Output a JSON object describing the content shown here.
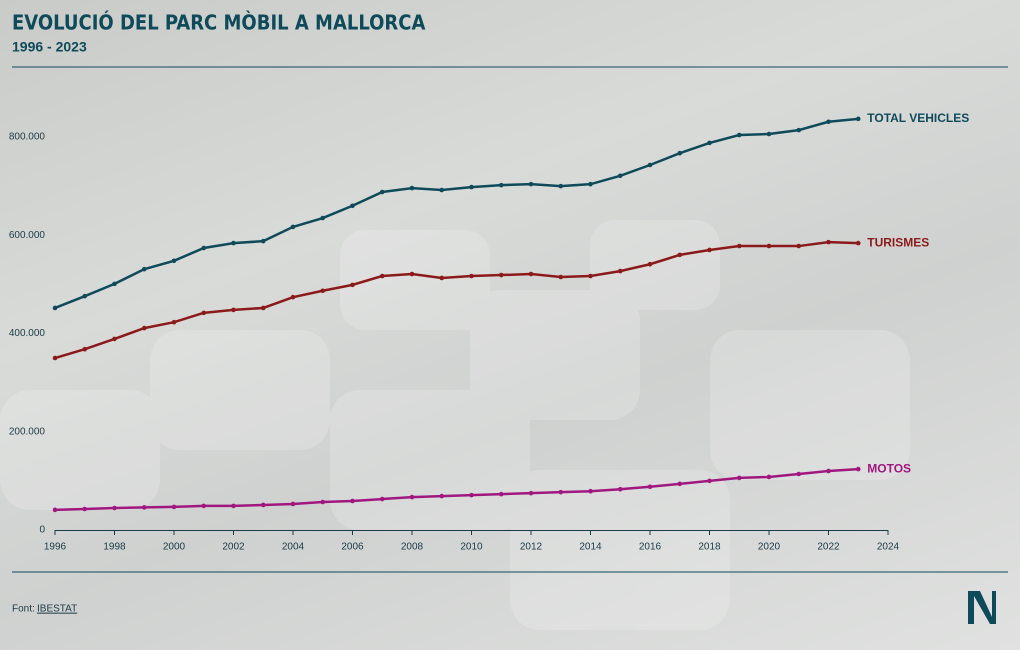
{
  "chart_data": {
    "type": "line",
    "title": "EVOLUCIÓ DEL PARC MÒBIL A MALLORCA",
    "subtitle": "1996 - 2023",
    "x": [
      1996,
      1997,
      1998,
      1999,
      2000,
      2001,
      2002,
      2003,
      2004,
      2005,
      2006,
      2007,
      2008,
      2009,
      2010,
      2011,
      2012,
      2013,
      2014,
      2015,
      2016,
      2017,
      2018,
      2019,
      2020,
      2021,
      2022,
      2023
    ],
    "series": [
      {
        "name": "TOTAL VEHICLES",
        "color": "#0f4a5a",
        "values": [
          452000,
          476000,
          501000,
          531000,
          548000,
          574000,
          584000,
          588000,
          617000,
          635000,
          660000,
          688000,
          696000,
          692000,
          698000,
          702000,
          704000,
          700000,
          704000,
          721000,
          743000,
          767000,
          788000,
          804000,
          806000,
          814000,
          831000,
          837000
        ]
      },
      {
        "name": "TURISMES",
        "color": "#8b1a1a",
        "values": [
          350000,
          368000,
          389000,
          411000,
          423000,
          442000,
          448000,
          452000,
          474000,
          487000,
          499000,
          517000,
          521000,
          513000,
          517000,
          519000,
          521000,
          515000,
          517000,
          527000,
          541000,
          560000,
          570000,
          578000,
          578000,
          578000,
          586000,
          584000
        ]
      },
      {
        "name": "MOTOS",
        "color": "#a0187f",
        "values": [
          41000,
          42700,
          44800,
          46000,
          47000,
          49000,
          49000,
          51000,
          53000,
          57000,
          59000,
          63000,
          67000,
          69000,
          71000,
          73000,
          75000,
          77000,
          79000,
          83000,
          88000,
          94000,
          100000,
          106000,
          108000,
          114000,
          120000,
          124000
        ]
      }
    ],
    "xlim": [
      1996,
      2024
    ],
    "xticks": [
      1996,
      1998,
      2000,
      2002,
      2004,
      2006,
      2008,
      2010,
      2012,
      2014,
      2016,
      2018,
      2020,
      2022,
      2024
    ],
    "ylim": [
      0,
      850000
    ],
    "yticks": [
      0,
      {
        "value": 200000,
        "label": "200.000"
      },
      {
        "value": 400000,
        "label": "400.000"
      },
      {
        "value": 600000,
        "label": "600.000"
      },
      {
        "value": 800000,
        "label": "800.000"
      }
    ],
    "grid": false,
    "source": {
      "label": "Font:",
      "name": "IBESTAT"
    }
  }
}
